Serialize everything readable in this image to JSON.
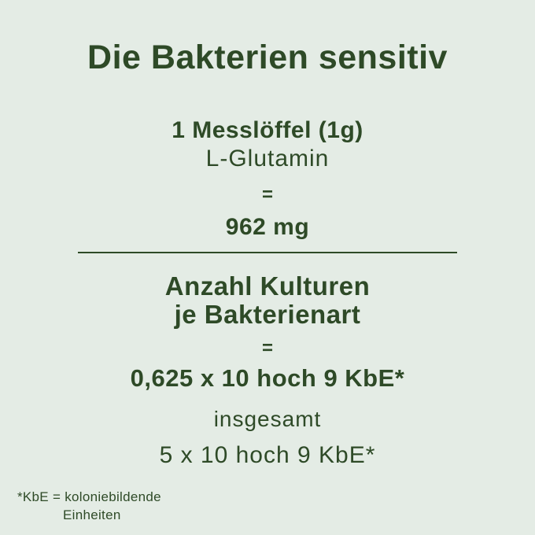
{
  "colors": {
    "background": "#e4ece5",
    "text": "#2e4a27",
    "divider": "#2e4a27"
  },
  "title": "Die Bakterien sensitiv",
  "dosage": {
    "line1": "1 Messlöffel (1g)",
    "line2": "L-Glutamin",
    "equals": "=",
    "value": "962 mg"
  },
  "cultures": {
    "heading_line1": "Anzahl Kulturen",
    "heading_line2": "je Bakterienart",
    "equals": "=",
    "value": "0,625 x 10 hoch 9 KbE*",
    "total_label": "insgesamt",
    "total_value": "5 x 10 hoch 9 KbE*"
  },
  "footnote": {
    "line1": "*KbE = koloniebildende",
    "line2": "Einheiten"
  }
}
